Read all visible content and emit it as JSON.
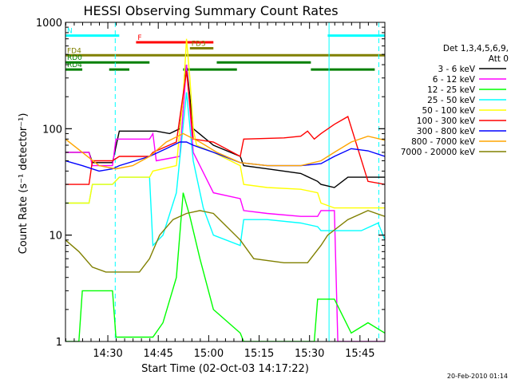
{
  "chart_data": {
    "type": "line",
    "title": "HESSI Observing Summary Count Rates",
    "xlabel": "Start Time (02-Oct-03 14:17:22)",
    "ylabel": "Count Rate (s⁻¹ detector⁻¹)",
    "yscale": "log",
    "ylim": [
      1,
      1000
    ],
    "xlim": [
      0,
      95
    ],
    "x_unit": "minutes after 14:17:22",
    "yticks": [
      {
        "value": 1,
        "label": "1"
      },
      {
        "value": 10,
        "label": "10"
      },
      {
        "value": 100,
        "label": "100"
      },
      {
        "value": 1000,
        "label": "1000"
      }
    ],
    "xticks": [
      {
        "value": 12.6,
        "label": "14:30"
      },
      {
        "value": 27.6,
        "label": "14:45"
      },
      {
        "value": 42.6,
        "label": "15:00"
      },
      {
        "value": 57.6,
        "label": "15:15"
      },
      {
        "value": 72.6,
        "label": "15:30"
      },
      {
        "value": 87.6,
        "label": "15:45"
      }
    ],
    "legend_title": [
      "Det 1,3,4,5,6,9,",
      "Att 0"
    ],
    "series": [
      {
        "name": "3 - 6 keV",
        "color": "#000000",
        "x": [
          0,
          7,
          8,
          14,
          16,
          27,
          31,
          34,
          36,
          38,
          44,
          52,
          53,
          60,
          70,
          75,
          76,
          80,
          84,
          90,
          95
        ],
        "y": [
          60,
          60,
          48,
          48,
          95,
          95,
          90,
          100,
          400,
          100,
          70,
          55,
          45,
          42,
          38,
          32,
          30,
          28,
          35,
          35,
          35
        ]
      },
      {
        "name": "6 - 12 keV",
        "color": "#ff00ff",
        "x": [
          0,
          7,
          8,
          14,
          15,
          25,
          26,
          27,
          34,
          36,
          38,
          44,
          52,
          53,
          60,
          70,
          75,
          76,
          80,
          81,
          84,
          90,
          95
        ],
        "y": [
          60,
          60,
          45,
          45,
          80,
          80,
          90,
          50,
          55,
          400,
          60,
          25,
          22,
          17,
          16,
          15,
          15,
          17,
          17,
          1,
          1,
          1,
          1
        ]
      },
      {
        "name": "12 - 25 keV",
        "color": "#00ff00",
        "x": [
          0,
          4,
          5,
          14,
          15,
          25,
          26,
          29,
          33,
          35,
          37,
          40,
          44,
          52,
          53,
          74,
          75,
          80,
          85,
          90,
          95
        ],
        "y": [
          1,
          1,
          3,
          3,
          1.1,
          1.1,
          1.1,
          1.5,
          4,
          25,
          15,
          6,
          2,
          1.2,
          1,
          1,
          2.5,
          2.5,
          1.2,
          1.5,
          1.2
        ]
      },
      {
        "name": "25 - 50 keV",
        "color": "#00ffff",
        "x": [
          0,
          7,
          8,
          14,
          16,
          25,
          26,
          29,
          33,
          36,
          38,
          41,
          44,
          52,
          53,
          60,
          70,
          75,
          76,
          80,
          84,
          88,
          93,
          95
        ],
        "y": [
          20,
          20,
          30,
          30,
          35,
          35,
          8,
          10,
          25,
          220,
          50,
          18,
          10,
          8,
          14,
          14,
          13,
          12,
          11,
          11,
          11,
          11,
          13,
          9
        ]
      },
      {
        "name": "50 - 100 keV",
        "color": "#ffff00",
        "x": [
          0,
          7,
          8,
          14,
          16,
          25,
          26,
          33,
          35,
          36,
          37,
          38,
          39,
          44,
          52,
          53,
          60,
          70,
          75,
          76,
          80,
          84,
          90,
          95
        ],
        "y": [
          20,
          20,
          30,
          30,
          35,
          35,
          40,
          45,
          200,
          700,
          300,
          100,
          70,
          60,
          45,
          30,
          28,
          27,
          25,
          20,
          18,
          18,
          18,
          18
        ]
      },
      {
        "name": "100 - 300 keV",
        "color": "#ff0000",
        "x": [
          0,
          7,
          8,
          14,
          16,
          25,
          26,
          33,
          36,
          38,
          44,
          52,
          53,
          65,
          70,
          72,
          74,
          76,
          80,
          84,
          90,
          95
        ],
        "y": [
          30,
          30,
          50,
          50,
          55,
          55,
          60,
          75,
          350,
          80,
          75,
          55,
          80,
          82,
          85,
          95,
          80,
          90,
          110,
          130,
          32,
          30
        ]
      },
      {
        "name": "300 - 800 keV",
        "color": "#0000ff",
        "x": [
          0,
          5,
          10,
          14,
          16,
          25,
          30,
          34,
          36,
          38,
          44,
          52,
          60,
          70,
          76,
          80,
          85,
          90,
          95
        ],
        "y": [
          50,
          45,
          40,
          42,
          45,
          55,
          65,
          75,
          75,
          70,
          60,
          48,
          45,
          45,
          47,
          55,
          65,
          62,
          55
        ]
      },
      {
        "name": "800 - 7000 keV",
        "color": "#ffa500",
        "x": [
          0,
          5,
          10,
          15,
          20,
          25,
          30,
          35,
          40,
          45,
          52,
          60,
          70,
          76,
          80,
          85,
          90,
          95
        ],
        "y": [
          80,
          60,
          45,
          42,
          45,
          55,
          75,
          90,
          75,
          60,
          48,
          45,
          45,
          50,
          60,
          75,
          85,
          78
        ]
      },
      {
        "name": "7000 - 20000 keV",
        "color": "#808000",
        "x": [
          0,
          4,
          8,
          12,
          15,
          22,
          25,
          28,
          32,
          36,
          40,
          44,
          48,
          52,
          56,
          65,
          72,
          76,
          78,
          84,
          90,
          95
        ],
        "y": [
          9,
          7,
          5,
          4.5,
          4.5,
          4.5,
          6,
          10,
          14,
          16,
          17,
          16,
          12,
          9,
          6,
          5.5,
          5.5,
          8,
          10,
          14,
          17,
          15
        ]
      }
    ],
    "flags": [
      {
        "label": "N",
        "label_color": "#00ffff",
        "color": "#00ffff",
        "y": 750,
        "segments": [
          [
            0,
            16
          ],
          [
            78,
            95
          ]
        ]
      },
      {
        "label": "F",
        "label_color": "#ff0000",
        "color": "#ff0000",
        "y": 650,
        "segments": [
          [
            21,
            44
          ]
        ]
      },
      {
        "label": "FD3",
        "label_color": "#808000",
        "color": "#808000",
        "y": 570,
        "segments": [
          [
            37,
            44
          ]
        ]
      },
      {
        "label": "FD4",
        "label_color": "#808000",
        "color": "#808000",
        "y": 490,
        "segments": [
          [
            0,
            95
          ]
        ]
      },
      {
        "label": "RD0",
        "label_color": "#008000",
        "color": "#008000",
        "y": 420,
        "segments": [
          [
            0,
            25
          ],
          [
            45,
            73
          ]
        ]
      },
      {
        "label": "RD4",
        "label_color": "#008000",
        "color": "#008000",
        "y": 360,
        "segments": [
          [
            0,
            5
          ],
          [
            13,
            19
          ],
          [
            35,
            51
          ],
          [
            73,
            92
          ]
        ]
      }
    ],
    "vlines": [
      {
        "x": 14.8,
        "color": "#00ffff",
        "style": "dashed"
      },
      {
        "x": 78.4,
        "color": "#00ffff",
        "style": "solid"
      },
      {
        "x": 93.2,
        "color": "#00ffff",
        "style": "dashed"
      }
    ]
  },
  "footer_date": "20-Feb-2010 01:14"
}
